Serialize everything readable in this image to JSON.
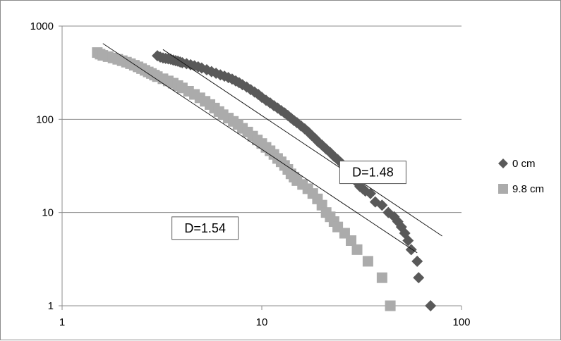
{
  "chart_data": {
    "type": "scatter",
    "x_scale": "log",
    "y_scale": "log",
    "xlim": [
      1,
      100
    ],
    "ylim": [
      1,
      1000
    ],
    "x_ticks": [
      "1",
      "10",
      "100"
    ],
    "y_ticks": [
      "1",
      "10",
      "100",
      "1000"
    ],
    "grid": "horizontal",
    "legend_position": "right",
    "series": [
      {
        "name": "0 cm",
        "marker": "diamond",
        "color": "#595959",
        "points": [
          [
            3.0,
            480
          ],
          [
            3.1,
            465
          ],
          [
            3.2,
            455
          ],
          [
            3.3,
            450
          ],
          [
            3.4,
            445
          ],
          [
            3.5,
            440
          ],
          [
            3.6,
            432
          ],
          [
            3.7,
            425
          ],
          [
            3.8,
            420
          ],
          [
            3.9,
            412
          ],
          [
            4.0,
            405
          ],
          [
            4.2,
            395
          ],
          [
            4.4,
            385
          ],
          [
            4.6,
            375
          ],
          [
            4.8,
            365
          ],
          [
            5.0,
            355
          ],
          [
            5.3,
            340
          ],
          [
            5.6,
            325
          ],
          [
            5.9,
            312
          ],
          [
            6.2,
            300
          ],
          [
            6.5,
            290
          ],
          [
            6.8,
            280
          ],
          [
            7.1,
            270
          ],
          [
            7.4,
            258
          ],
          [
            7.7,
            247
          ],
          [
            8.0,
            235
          ],
          [
            8.4,
            222
          ],
          [
            8.8,
            208
          ],
          [
            9.2,
            196
          ],
          [
            9.6,
            185
          ],
          [
            10.0,
            172
          ],
          [
            10.5,
            160
          ],
          [
            11.0,
            150
          ],
          [
            11.5,
            140
          ],
          [
            12.0,
            132
          ],
          [
            12.5,
            124
          ],
          [
            13.0,
            117
          ],
          [
            13.5,
            110
          ],
          [
            14.0,
            103
          ],
          [
            14.5,
            97
          ],
          [
            15.0,
            92
          ],
          [
            15.7,
            85
          ],
          [
            16.4,
            79
          ],
          [
            17.1,
            73
          ],
          [
            17.8,
            67
          ],
          [
            18.5,
            62
          ],
          [
            19.2,
            57
          ],
          [
            20.0,
            53
          ],
          [
            21.0,
            48
          ],
          [
            22.0,
            44
          ],
          [
            23.0,
            40
          ],
          [
            24.0,
            37
          ],
          [
            25.0,
            34
          ],
          [
            26.0,
            31
          ],
          [
            27.0,
            28
          ],
          [
            28.0,
            25
          ],
          [
            29.0,
            23
          ],
          [
            30.0,
            21
          ],
          [
            31.0,
            19
          ],
          [
            32.0,
            18
          ],
          [
            33.0,
            17
          ],
          [
            35.0,
            16
          ],
          [
            37.0,
            13
          ],
          [
            40.0,
            12
          ],
          [
            43.0,
            10
          ],
          [
            46.0,
            9
          ],
          [
            48.0,
            8
          ],
          [
            50.0,
            7
          ],
          [
            52.0,
            6
          ],
          [
            54.0,
            5
          ],
          [
            56.0,
            4
          ],
          [
            60.0,
            3
          ],
          [
            61.0,
            2
          ],
          [
            70.0,
            1
          ]
        ]
      },
      {
        "name": "9.8 cm",
        "marker": "square",
        "color": "#ababab",
        "points": [
          [
            1.5,
            520
          ],
          [
            1.55,
            500
          ],
          [
            1.6,
            485
          ],
          [
            1.7,
            470
          ],
          [
            1.8,
            455
          ],
          [
            1.9,
            440
          ],
          [
            2.0,
            425
          ],
          [
            2.1,
            410
          ],
          [
            2.2,
            395
          ],
          [
            2.3,
            380
          ],
          [
            2.4,
            365
          ],
          [
            2.5,
            350
          ],
          [
            2.6,
            335
          ],
          [
            2.7,
            322
          ],
          [
            2.8,
            310
          ],
          [
            2.9,
            298
          ],
          [
            3.0,
            287
          ],
          [
            3.2,
            272
          ],
          [
            3.4,
            258
          ],
          [
            3.6,
            244
          ],
          [
            3.8,
            230
          ],
          [
            4.0,
            217
          ],
          [
            4.3,
            200
          ],
          [
            4.6,
            185
          ],
          [
            4.9,
            170
          ],
          [
            5.2,
            156
          ],
          [
            5.5,
            144
          ],
          [
            5.8,
            132
          ],
          [
            6.1,
            121
          ],
          [
            6.4,
            112
          ],
          [
            6.8,
            103
          ],
          [
            7.2,
            95
          ],
          [
            7.6,
            88
          ],
          [
            8.0,
            80
          ],
          [
            8.5,
            73
          ],
          [
            9.0,
            66
          ],
          [
            9.5,
            60
          ],
          [
            10.0,
            55
          ],
          [
            10.5,
            50
          ],
          [
            11.0,
            46
          ],
          [
            11.5,
            42
          ],
          [
            12.0,
            38
          ],
          [
            12.5,
            35
          ],
          [
            13.0,
            32
          ],
          [
            13.5,
            29
          ],
          [
            14.0,
            26
          ],
          [
            14.5,
            24
          ],
          [
            15.0,
            22
          ],
          [
            16.0,
            20
          ],
          [
            17.0,
            18
          ],
          [
            18.0,
            16
          ],
          [
            19.0,
            14
          ],
          [
            20.0,
            12
          ],
          [
            21.0,
            10
          ],
          [
            22.0,
            9
          ],
          [
            23.0,
            8
          ],
          [
            24.0,
            7
          ],
          [
            26.0,
            6
          ],
          [
            28.0,
            5
          ],
          [
            30.0,
            4
          ],
          [
            34.0,
            3
          ],
          [
            40.0,
            2
          ],
          [
            44.0,
            1
          ]
        ]
      }
    ],
    "fit_lines": [
      {
        "series": "0 cm",
        "from": [
          3.2,
          560
        ],
        "to": [
          80,
          5.6
        ]
      },
      {
        "series": "9.8 cm",
        "from": [
          1.6,
          650
        ],
        "to": [
          60,
          3.7
        ]
      }
    ],
    "annotations": [
      {
        "text": "D=1.48",
        "x": 36,
        "y": 27
      },
      {
        "text": "D=1.54",
        "x": 5.2,
        "y": 6.8
      }
    ]
  }
}
